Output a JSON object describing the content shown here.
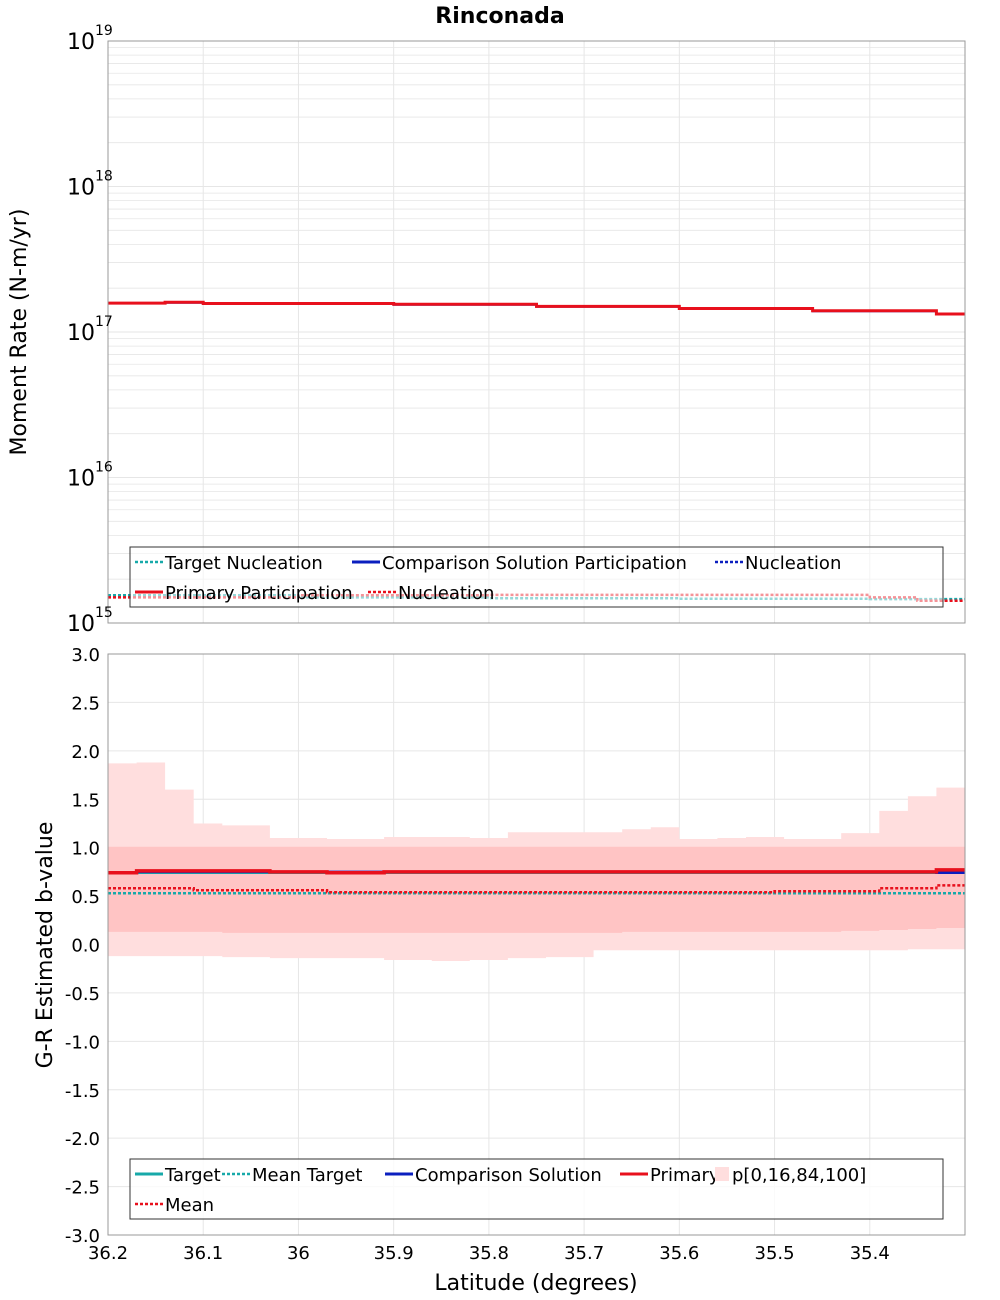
{
  "colors": {
    "target": "#17a9a9",
    "comparison": "#0b1fbf",
    "primary": "#e8101c",
    "band_outer": "#ffdede",
    "band_inner": "#ffc4c4",
    "grid": "#e6e6e6",
    "frame": "#999999"
  },
  "chart_data": [
    {
      "type": "line",
      "title": "Rinconada",
      "xlabel": "",
      "ylabel": "Moment Rate (N-m/yr)",
      "yscale": "log",
      "ylim": [
        1000000000000000.0,
        1e+19
      ],
      "xlim": [
        36.2,
        35.3
      ],
      "x_reversed": true,
      "grid": true,
      "y_tick_labels": [
        {
          "base": "10",
          "exp": "15",
          "value": 1000000000000000.0
        },
        {
          "base": "10",
          "exp": "16",
          "value": 1e+16
        },
        {
          "base": "10",
          "exp": "17",
          "value": 1e+17
        },
        {
          "base": "10",
          "exp": "18",
          "value": 1e+18
        },
        {
          "base": "10",
          "exp": "19",
          "value": 1e+19
        }
      ],
      "legend": {
        "placement": "bottom",
        "entries": [
          {
            "key": "target_nucleation",
            "label": "Target Nucleation",
            "style": "dotted",
            "color": "#17a9a9"
          },
          {
            "key": "comparison_participation",
            "label": "Comparison Solution Participation",
            "style": "solid",
            "color": "#0b1fbf"
          },
          {
            "key": "comparison_nucleation",
            "label": "Nucleation",
            "style": "dotted",
            "color": "#0b1fbf"
          },
          {
            "key": "primary_participation",
            "label": "Primary Participation",
            "style": "solid",
            "color": "#e8101c"
          },
          {
            "key": "primary_nucleation",
            "label": "Nucleation",
            "style": "dotted",
            "color": "#e8101c"
          }
        ]
      },
      "series": [
        {
          "name": "Primary Participation",
          "style": "step",
          "x": [
            36.2,
            36.14,
            36.1,
            35.9,
            35.75,
            35.6,
            35.46,
            35.33,
            35.3
          ],
          "y": [
            1.58e+17,
            1.6e+17,
            1.57e+17,
            1.55e+17,
            1.5e+17,
            1.45e+17,
            1.4e+17,
            1.33e+17,
            1.32e+17
          ]
        },
        {
          "name": "Comparison Solution Participation",
          "style": "step",
          "x": [
            36.2,
            36.14,
            36.1,
            35.9,
            35.75,
            35.6,
            35.46,
            35.33,
            35.3
          ],
          "y": [
            1.57e+17,
            1.59e+17,
            1.56e+17,
            1.54e+17,
            1.49e+17,
            1.44e+17,
            1.39e+17,
            1.32e+17,
            1.31e+17
          ]
        },
        {
          "name": "Target Nucleation",
          "style": "step",
          "x": [
            36.2,
            36.0,
            35.8,
            35.6,
            35.4,
            35.3
          ],
          "y": [
            1550000000000000.0,
            1500000000000000.0,
            1480000000000000.0,
            1470000000000000.0,
            1460000000000000.0,
            1450000000000000.0
          ]
        },
        {
          "name": "Primary Nucleation",
          "style": "step",
          "x": [
            36.2,
            36.0,
            35.8,
            35.6,
            35.4,
            35.35,
            35.3
          ],
          "y": [
            1500000000000000.0,
            1550000000000000.0,
            1560000000000000.0,
            1560000000000000.0,
            1500000000000000.0,
            1420000000000000.0,
            1400000000000000.0
          ]
        }
      ]
    },
    {
      "type": "line",
      "title": "",
      "xlabel": "Latitude (degrees)",
      "ylabel": "G-R Estimated b-value",
      "ylim": [
        -3.0,
        3.0
      ],
      "xlim": [
        36.2,
        35.3
      ],
      "x_reversed": true,
      "grid": true,
      "y_ticks": [
        "3.0",
        "2.5",
        "2.0",
        "1.5",
        "1.0",
        "0.5",
        "0.0",
        "-0.5",
        "-1.0",
        "-1.5",
        "-2.0",
        "-2.5",
        "-3.0"
      ],
      "x_ticks": [
        "36.2",
        "36.1",
        "36",
        "35.9",
        "35.8",
        "35.7",
        "35.6",
        "35.5",
        "35.4"
      ],
      "legend": {
        "placement": "bottom",
        "entries": [
          {
            "key": "target",
            "label": "Target",
            "style": "solid",
            "color": "#17a9a9"
          },
          {
            "key": "mean_target",
            "label": "Mean Target",
            "style": "dotted",
            "color": "#17a9a9"
          },
          {
            "key": "comparison",
            "label": "Comparison Solution",
            "style": "solid",
            "color": "#0b1fbf"
          },
          {
            "key": "primary",
            "label": "Primary",
            "style": "solid",
            "color": "#e8101c"
          },
          {
            "key": "band",
            "label": "p[0,16,84,100]",
            "style": "band",
            "color": "#ffdede"
          },
          {
            "key": "mean",
            "label": "Mean",
            "style": "dotted",
            "color": "#e8101c"
          }
        ]
      },
      "bands": {
        "x": [
          36.2,
          36.17,
          36.14,
          36.11,
          36.08,
          36.03,
          35.97,
          35.91,
          35.86,
          35.82,
          35.78,
          35.74,
          35.69,
          35.66,
          35.63,
          35.6,
          35.56,
          35.53,
          35.49,
          35.46,
          35.43,
          35.39,
          35.36,
          35.33,
          35.3
        ],
        "p100": [
          1.87,
          1.88,
          1.6,
          1.25,
          1.23,
          1.1,
          1.09,
          1.11,
          1.11,
          1.1,
          1.16,
          1.16,
          1.16,
          1.19,
          1.21,
          1.09,
          1.1,
          1.11,
          1.09,
          1.09,
          1.15,
          1.38,
          1.53,
          1.62,
          1.65
        ],
        "p84": [
          1.01,
          1.01,
          1.01,
          1.01,
          1.01,
          1.01,
          1.01,
          1.01,
          1.01,
          1.01,
          1.01,
          1.01,
          1.01,
          1.01,
          1.01,
          1.01,
          1.01,
          1.01,
          1.01,
          1.01,
          1.01,
          1.01,
          1.01,
          1.01,
          1.01
        ],
        "p16": [
          0.13,
          0.13,
          0.13,
          0.13,
          0.12,
          0.12,
          0.12,
          0.12,
          0.12,
          0.12,
          0.12,
          0.12,
          0.12,
          0.13,
          0.13,
          0.13,
          0.13,
          0.13,
          0.13,
          0.13,
          0.14,
          0.15,
          0.16,
          0.17,
          0.18
        ],
        "p0": [
          -0.12,
          -0.12,
          -0.12,
          -0.12,
          -0.13,
          -0.14,
          -0.14,
          -0.16,
          -0.17,
          -0.16,
          -0.14,
          -0.13,
          -0.06,
          -0.06,
          -0.06,
          -0.06,
          -0.06,
          -0.06,
          -0.06,
          -0.06,
          -0.06,
          -0.06,
          -0.05,
          -0.05,
          -0.04
        ]
      },
      "series": [
        {
          "name": "Primary",
          "style": "step",
          "x": [
            36.2,
            36.17,
            36.03,
            35.97,
            35.91,
            35.86,
            35.82,
            35.46,
            35.33,
            35.3
          ],
          "y": [
            0.74,
            0.76,
            0.75,
            0.74,
            0.75,
            0.75,
            0.75,
            0.75,
            0.77,
            0.74
          ]
        },
        {
          "name": "Comparison Solution",
          "style": "step",
          "x": [
            36.2,
            36.17,
            35.46,
            35.33,
            35.3
          ],
          "y": [
            0.74,
            0.75,
            0.75,
            0.74,
            0.74
          ]
        },
        {
          "name": "Target",
          "style": "step",
          "x": [
            36.2,
            36.17,
            35.3
          ],
          "y": [
            0.74,
            0.74,
            0.74
          ]
        },
        {
          "name": "Mean",
          "style": "step",
          "x": [
            36.2,
            36.17,
            36.11,
            35.97,
            35.5,
            35.39,
            35.33,
            35.3
          ],
          "y": [
            0.58,
            0.58,
            0.56,
            0.54,
            0.55,
            0.58,
            0.61,
            0.6
          ]
        },
        {
          "name": "Mean Target",
          "style": "step",
          "x": [
            36.2,
            35.3
          ],
          "y": [
            0.53,
            0.53
          ]
        }
      ]
    }
  ]
}
